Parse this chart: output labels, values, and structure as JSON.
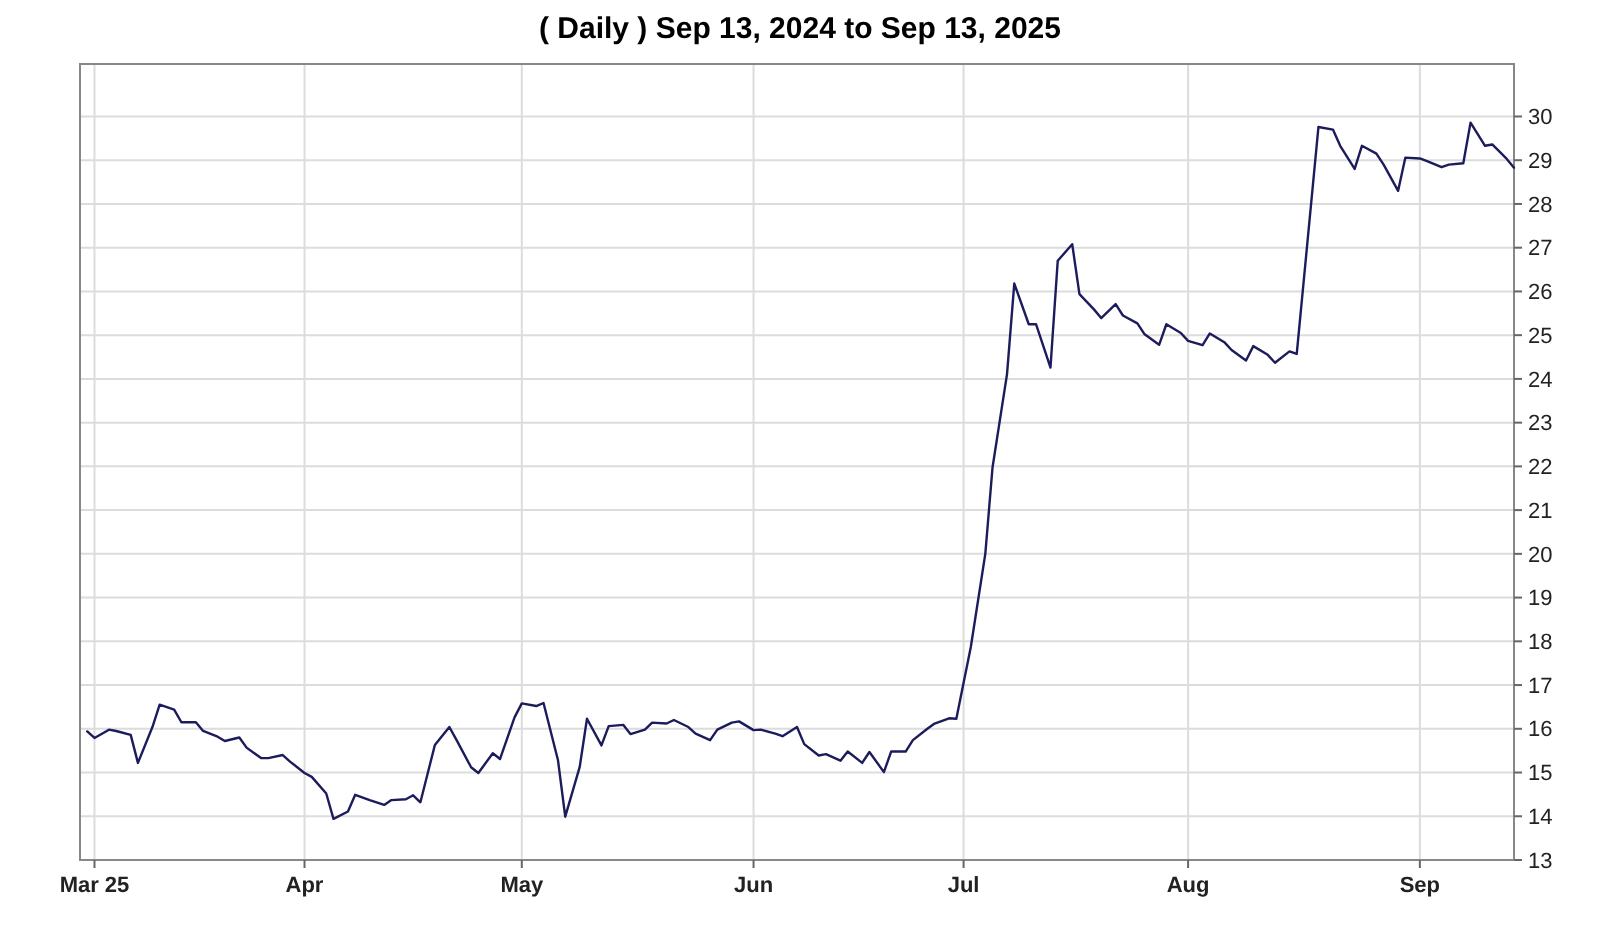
{
  "chart_data": {
    "type": "line",
    "title": "( Daily ) Sep 13, 2024 to Sep 13, 2025",
    "x": [
      "2025-03-02",
      "2025-03-03",
      "2025-03-05",
      "2025-03-06",
      "2025-03-08",
      "2025-03-09",
      "2025-03-11",
      "2025-03-12",
      "2025-03-14",
      "2025-03-15",
      "2025-03-17",
      "2025-03-18",
      "2025-03-20",
      "2025-03-21",
      "2025-03-23",
      "2025-03-24",
      "2025-03-26",
      "2025-03-27",
      "2025-03-29",
      "2025-03-30",
      "2025-04-01",
      "2025-04-02",
      "2025-04-04",
      "2025-04-05",
      "2025-04-07",
      "2025-04-08",
      "2025-04-10",
      "2025-04-12",
      "2025-04-13",
      "2025-04-15",
      "2025-04-16",
      "2025-04-17",
      "2025-04-19",
      "2025-04-21",
      "2025-04-22",
      "2025-04-24",
      "2025-04-25",
      "2025-04-27",
      "2025-04-28",
      "2025-04-30",
      "2025-05-01",
      "2025-05-03",
      "2025-05-04",
      "2025-05-06",
      "2025-05-07",
      "2025-05-09",
      "2025-05-10",
      "2025-05-12",
      "2025-05-13",
      "2025-05-15",
      "2025-05-16",
      "2025-05-18",
      "2025-05-19",
      "2025-05-21",
      "2025-05-22",
      "2025-05-24",
      "2025-05-25",
      "2025-05-27",
      "2025-05-28",
      "2025-05-30",
      "2025-05-31",
      "2025-06-02",
      "2025-06-03",
      "2025-06-05",
      "2025-06-06",
      "2025-06-08",
      "2025-06-09",
      "2025-06-11",
      "2025-06-12",
      "2025-06-14",
      "2025-06-15",
      "2025-06-17",
      "2025-06-18",
      "2025-06-20",
      "2025-06-21",
      "2025-06-23",
      "2025-06-24",
      "2025-06-26",
      "2025-06-27",
      "2025-06-29",
      "2025-06-30",
      "2025-07-02",
      "2025-07-04",
      "2025-07-05",
      "2025-07-07",
      "2025-07-08",
      "2025-07-10",
      "2025-07-11",
      "2025-07-13",
      "2025-07-14",
      "2025-07-16",
      "2025-07-17",
      "2025-07-19",
      "2025-07-20",
      "2025-07-22",
      "2025-07-23",
      "2025-07-25",
      "2025-07-26",
      "2025-07-28",
      "2025-07-29",
      "2025-07-31",
      "2025-08-01",
      "2025-08-03",
      "2025-08-04",
      "2025-08-06",
      "2025-08-07",
      "2025-08-09",
      "2025-08-10",
      "2025-08-12",
      "2025-08-13",
      "2025-08-15",
      "2025-08-16",
      "2025-08-19",
      "2025-08-21",
      "2025-08-22",
      "2025-08-24",
      "2025-08-25",
      "2025-08-27",
      "2025-08-28",
      "2025-08-30",
      "2025-08-31",
      "2025-09-02",
      "2025-09-03",
      "2025-09-05",
      "2025-09-06",
      "2025-09-08",
      "2025-09-09",
      "2025-09-11",
      "2025-09-12",
      "2025-09-14",
      "2025-09-15"
    ],
    "series": [
      {
        "color": "#1c1c5c",
        "values": [
          15.94,
          15.79,
          15.98,
          15.95,
          15.86,
          15.22,
          16.04,
          16.55,
          16.44,
          16.15,
          16.15,
          15.95,
          15.82,
          15.72,
          15.8,
          15.57,
          15.33,
          15.33,
          15.4,
          15.25,
          14.99,
          14.9,
          14.52,
          13.94,
          14.11,
          14.49,
          14.37,
          14.26,
          14.37,
          14.39,
          14.48,
          14.32,
          15.63,
          16.04,
          15.74,
          15.12,
          14.99,
          15.44,
          15.31,
          16.26,
          16.58,
          16.52,
          16.59,
          15.28,
          13.99,
          15.13,
          16.23,
          15.62,
          16.06,
          16.09,
          15.88,
          15.98,
          16.14,
          16.12,
          16.2,
          16.04,
          15.89,
          15.74,
          15.98,
          16.14,
          16.17,
          15.97,
          15.98,
          15.89,
          15.83,
          16.04,
          15.65,
          15.39,
          15.42,
          15.27,
          15.48,
          15.22,
          15.47,
          15.01,
          15.48,
          15.48,
          15.74,
          16.0,
          16.12,
          16.24,
          16.23,
          17.87,
          20.0,
          21.98,
          24.11,
          26.18,
          25.25,
          25.25,
          24.26,
          26.7,
          27.08,
          25.94,
          25.59,
          25.39,
          25.71,
          25.45,
          25.27,
          25.02,
          24.78,
          25.25,
          25.05,
          24.87,
          24.77,
          25.04,
          24.84,
          24.66,
          24.42,
          24.75,
          24.55,
          24.37,
          24.63,
          24.57,
          29.76,
          29.7,
          29.33,
          28.8,
          29.33,
          29.15,
          28.9,
          28.3,
          29.06,
          29.04,
          28.98,
          28.84,
          28.9,
          28.93,
          29.86,
          29.33,
          29.36,
          29.03,
          28.83
        ]
      }
    ],
    "xlim": [
      "2025-03-01",
      "2025-09-15"
    ],
    "xticks": [
      {
        "value": "2025-03-03",
        "label": "Mar 25"
      },
      {
        "value": "2025-04-01",
        "label": "Apr"
      },
      {
        "value": "2025-05-01",
        "label": "May"
      },
      {
        "value": "2025-06-02",
        "label": "Jun"
      },
      {
        "value": "2025-07-01",
        "label": "Jul"
      },
      {
        "value": "2025-08-01",
        "label": "Aug"
      },
      {
        "value": "2025-09-02",
        "label": "Sep"
      }
    ],
    "ylim": [
      13,
      31.2
    ],
    "yticks": [
      13,
      14,
      15,
      16,
      17,
      18,
      19,
      20,
      21,
      22,
      23,
      24,
      25,
      26,
      27,
      28,
      29,
      30
    ],
    "grid": true,
    "marker": "none",
    "line_style": "solid"
  }
}
